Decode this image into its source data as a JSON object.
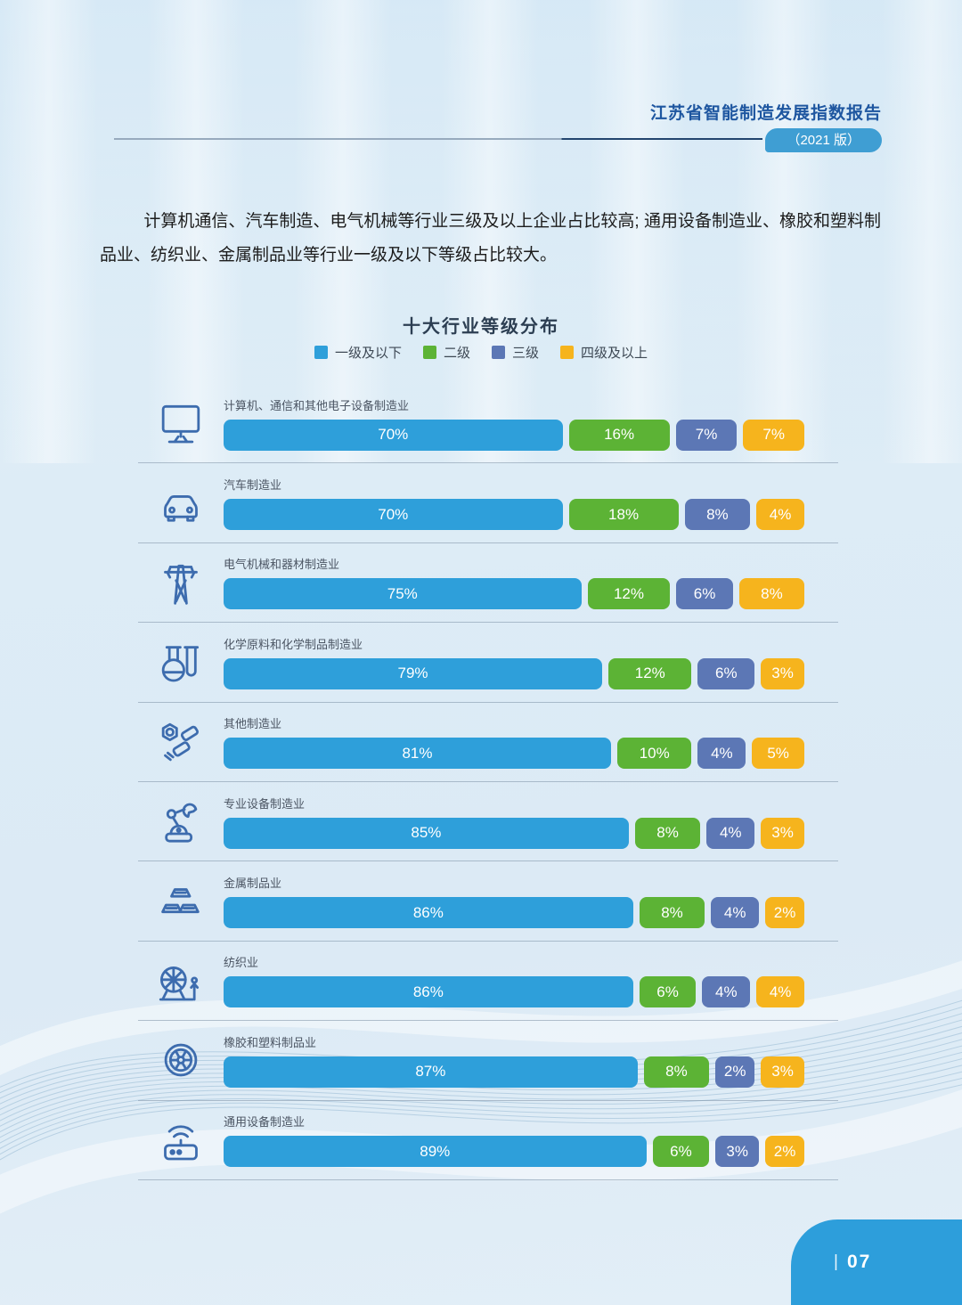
{
  "header": {
    "title": "江苏省智能制造发展指数报告",
    "edition_badge": "（2021 版）"
  },
  "intro": {
    "text": "计算机通信、汽车制造、电气机械等行业三级及以上企业占比较高; 通用设备制造业、橡胶和塑料制品业、纺织业、金属制品业等行业一级及以下等级占比较大。"
  },
  "chart_data": {
    "type": "bar",
    "orientation": "horizontal-stacked",
    "title": "十大行业等级分布",
    "unit": "%",
    "legend_position": "top-center",
    "legend": [
      {
        "label": "一级及以下",
        "color": "#2e9fda"
      },
      {
        "label": "二级",
        "color": "#5cb335"
      },
      {
        "label": "三级",
        "color": "#5c77b5"
      },
      {
        "label": "四级及以上",
        "color": "#f6b41d"
      }
    ],
    "categories": [
      "计算机、通信和其他电子设备制造业",
      "汽车制造业",
      "电气机械和器材制造业",
      "化学原料和化学制品制造业",
      "其他制造业",
      "专业设备制造业",
      "金属制品业",
      "纺织业",
      "橡胶和塑料制品业",
      "通用设备制造业"
    ],
    "icons": [
      "monitor-icon",
      "car-icon",
      "power-tower-icon",
      "flask-icon",
      "nuts-bolts-icon",
      "robot-arm-icon",
      "metal-ingots-icon",
      "spinning-wheel-icon",
      "tire-icon",
      "router-icon"
    ],
    "series": [
      {
        "name": "一级及以下",
        "values": [
          70,
          70,
          75,
          79,
          81,
          85,
          86,
          86,
          87,
          89
        ]
      },
      {
        "name": "二级",
        "values": [
          16,
          18,
          12,
          12,
          10,
          8,
          8,
          6,
          8,
          6
        ]
      },
      {
        "name": "三级",
        "values": [
          7,
          8,
          6,
          6,
          4,
          4,
          4,
          4,
          2,
          3
        ]
      },
      {
        "name": "四级及以上",
        "values": [
          7,
          4,
          8,
          3,
          5,
          3,
          2,
          4,
          3,
          2
        ]
      }
    ]
  },
  "footer": {
    "separator": "|",
    "page_number": "07"
  }
}
